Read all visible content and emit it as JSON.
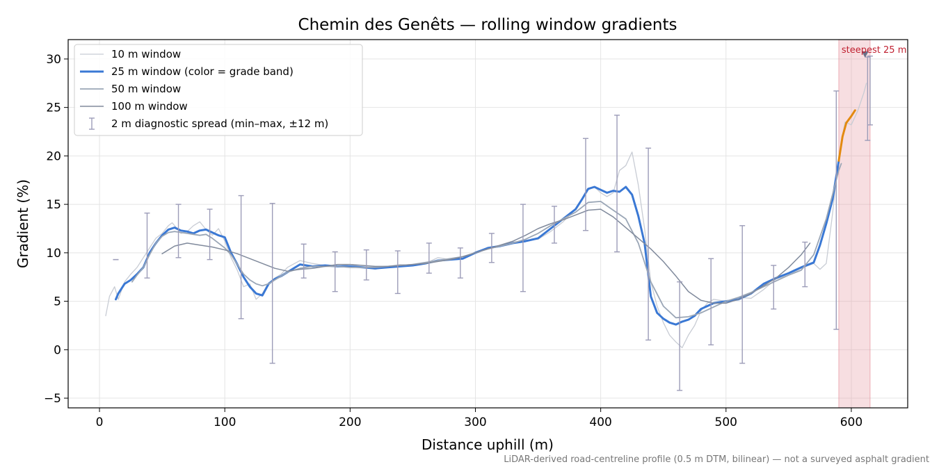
{
  "chart_data": {
    "type": "line",
    "title": "Chemin des Genêts — rolling window gradients",
    "xlabel": "Distance uphill (m)",
    "ylabel": "Gradient (%)",
    "xlim": [
      -25,
      645
    ],
    "ylim": [
      -6,
      32
    ],
    "x_ticks": [
      0,
      100,
      200,
      300,
      400,
      500,
      600
    ],
    "y_ticks": [
      -5,
      0,
      5,
      10,
      15,
      20,
      25,
      30
    ],
    "y_tick_labels": [
      "−5",
      "0",
      "5",
      "10",
      "15",
      "20",
      "25",
      "30"
    ],
    "grid": true,
    "legend_position": "top-left",
    "footnote": "LiDAR-derived road-centreline profile (0.5 m DTM, bilinear) — not a surveyed asphalt gradient",
    "highlight": {
      "x_range": [
        590,
        615
      ],
      "label": "steepest 25 m",
      "marker": [
        611,
        30.5
      ],
      "color": "#e8a0a8"
    },
    "series": [
      {
        "name": "10 m window",
        "color": "#c8ccd4",
        "width": 1.3,
        "x": [
          5,
          8,
          12,
          15,
          20,
          25,
          30,
          35,
          40,
          45,
          50,
          55,
          58,
          62,
          65,
          70,
          75,
          80,
          85,
          90,
          95,
          100,
          105,
          110,
          115,
          120,
          125,
          130,
          135,
          140,
          145,
          150,
          160,
          170,
          180,
          190,
          200,
          210,
          220,
          230,
          240,
          250,
          260,
          270,
          280,
          290,
          300,
          310,
          320,
          330,
          340,
          350,
          360,
          370,
          380,
          385,
          390,
          395,
          400,
          405,
          410,
          415,
          420,
          425,
          430,
          435,
          440,
          445,
          450,
          455,
          460,
          465,
          470,
          475,
          480,
          485,
          490,
          500,
          510,
          520,
          530,
          540,
          550,
          560,
          570,
          575,
          580,
          585,
          590,
          595,
          600,
          605,
          610,
          612
        ],
        "y": [
          3.5,
          5.5,
          6.5,
          5.2,
          7.0,
          7.8,
          8.5,
          9.5,
          10.5,
          11.5,
          12.0,
          12.8,
          13.1,
          12.5,
          12.0,
          12.2,
          12.8,
          13.2,
          12.4,
          11.8,
          12.5,
          11.2,
          9.5,
          8.2,
          6.5,
          6.8,
          5.2,
          5.8,
          6.9,
          7.4,
          7.8,
          8.5,
          9.2,
          8.9,
          8.7,
          8.6,
          8.8,
          8.5,
          8.3,
          8.6,
          8.8,
          8.7,
          8.9,
          9.5,
          9.3,
          9.4,
          10.1,
          10.5,
          10.8,
          11.1,
          11.3,
          11.4,
          12.2,
          13.2,
          14.5,
          15.5,
          16.5,
          16.8,
          16.2,
          15.8,
          16.2,
          18.5,
          19.0,
          20.4,
          17.0,
          12.5,
          7.0,
          4.5,
          2.8,
          1.5,
          0.8,
          0.2,
          1.5,
          2.5,
          4.0,
          4.8,
          5.2,
          5.0,
          5.4,
          5.3,
          6.2,
          7.3,
          7.7,
          8.4,
          8.9,
          8.3,
          8.9,
          14.0,
          20.0,
          23.5,
          23.2,
          24.6,
          26.5,
          27.5
        ]
      },
      {
        "name": "25 m window (color = grade band)",
        "color": "#3a78d4",
        "width": 3,
        "x": [
          13,
          15,
          20,
          25,
          30,
          35,
          40,
          45,
          50,
          55,
          60,
          65,
          70,
          75,
          80,
          85,
          90,
          95,
          100,
          105,
          110,
          115,
          120,
          125,
          130,
          135,
          140,
          145,
          150,
          160,
          170,
          180,
          190,
          200,
          210,
          220,
          230,
          240,
          250,
          260,
          270,
          280,
          290,
          300,
          310,
          320,
          330,
          340,
          350,
          360,
          370,
          380,
          385,
          390,
          395,
          400,
          405,
          410,
          415,
          420,
          425,
          430,
          435,
          440,
          445,
          450,
          455,
          460,
          465,
          470,
          475,
          480,
          490,
          500,
          510,
          520,
          530,
          540,
          550,
          560,
          570,
          575,
          580,
          585,
          590
        ],
        "y": [
          5.2,
          5.8,
          6.8,
          7.2,
          7.8,
          8.5,
          10.0,
          11.0,
          11.8,
          12.4,
          12.6,
          12.3,
          12.2,
          12.0,
          12.3,
          12.4,
          12.1,
          11.8,
          11.6,
          10.0,
          8.8,
          7.5,
          6.5,
          5.8,
          5.6,
          6.8,
          7.3,
          7.6,
          8.0,
          8.8,
          8.6,
          8.7,
          8.6,
          8.6,
          8.5,
          8.4,
          8.5,
          8.6,
          8.7,
          8.9,
          9.2,
          9.3,
          9.4,
          10.0,
          10.5,
          10.7,
          11.0,
          11.2,
          11.5,
          12.5,
          13.5,
          14.5,
          15.5,
          16.6,
          16.8,
          16.5,
          16.2,
          16.4,
          16.3,
          16.8,
          16.0,
          13.8,
          11.0,
          5.5,
          3.8,
          3.2,
          2.8,
          2.6,
          2.9,
          3.1,
          3.5,
          4.2,
          4.8,
          5.0,
          5.2,
          5.8,
          6.8,
          7.4,
          7.9,
          8.5,
          9.0,
          10.8,
          13.0,
          15.5,
          19.5
        ]
      },
      {
        "name": "25 m window (orange segment)",
        "legend": false,
        "color": "#e38a10",
        "width": 3,
        "x": [
          590,
          593,
          596,
          600,
          603
        ],
        "y": [
          19.5,
          22.0,
          23.4,
          24.1,
          24.7
        ]
      },
      {
        "name": "50 m window",
        "color": "#9aa6b6",
        "width": 1.8,
        "x": [
          26,
          30,
          35,
          40,
          45,
          50,
          55,
          60,
          65,
          70,
          75,
          80,
          85,
          90,
          95,
          100,
          105,
          110,
          115,
          120,
          125,
          130,
          135,
          140,
          145,
          150,
          160,
          170,
          180,
          190,
          200,
          210,
          220,
          230,
          240,
          250,
          260,
          270,
          280,
          290,
          300,
          310,
          320,
          330,
          340,
          350,
          360,
          370,
          380,
          390,
          400,
          410,
          420,
          430,
          440,
          450,
          460,
          470,
          480,
          490,
          500,
          510,
          520,
          530,
          540,
          550,
          560,
          570,
          580,
          590,
          592
        ],
        "y": [
          7.0,
          7.7,
          8.5,
          9.8,
          11.0,
          11.7,
          12.1,
          12.2,
          12.1,
          12.0,
          11.9,
          11.8,
          11.9,
          11.5,
          11.0,
          10.5,
          9.8,
          8.8,
          7.8,
          7.2,
          6.8,
          6.6,
          6.8,
          7.2,
          7.6,
          8.0,
          8.4,
          8.6,
          8.6,
          8.6,
          8.5,
          8.5,
          8.5,
          8.6,
          8.7,
          8.8,
          9.0,
          9.2,
          9.4,
          9.6,
          10.0,
          10.4,
          10.7,
          11.0,
          11.4,
          12.0,
          12.8,
          13.5,
          14.2,
          15.2,
          15.3,
          14.4,
          13.5,
          11.0,
          7.0,
          4.5,
          3.3,
          3.4,
          3.8,
          4.4,
          5.0,
          5.4,
          5.9,
          6.5,
          7.1,
          7.7,
          8.2,
          9.8,
          13.5,
          18.5,
          19.2
        ]
      },
      {
        "name": "100 m window",
        "color": "#808a9c",
        "width": 1.5,
        "x": [
          50,
          60,
          70,
          80,
          90,
          100,
          110,
          120,
          130,
          140,
          150,
          160,
          170,
          180,
          190,
          200,
          210,
          220,
          230,
          240,
          250,
          260,
          270,
          280,
          290,
          300,
          310,
          320,
          330,
          340,
          350,
          360,
          370,
          380,
          390,
          400,
          410,
          420,
          430,
          440,
          450,
          460,
          470,
          480,
          490,
          500,
          510,
          520,
          530,
          540,
          550,
          560,
          567
        ],
        "y": [
          9.9,
          10.7,
          11.0,
          10.8,
          10.6,
          10.3,
          9.9,
          9.4,
          8.9,
          8.4,
          8.1,
          8.3,
          8.4,
          8.6,
          8.8,
          8.8,
          8.7,
          8.6,
          8.6,
          8.7,
          8.8,
          8.9,
          9.1,
          9.3,
          9.6,
          10.0,
          10.4,
          10.8,
          11.2,
          11.8,
          12.5,
          13.0,
          13.4,
          13.9,
          14.4,
          14.5,
          13.7,
          12.6,
          11.5,
          10.4,
          9.1,
          7.6,
          6.0,
          5.1,
          4.8,
          4.8,
          5.2,
          5.8,
          6.6,
          7.4,
          8.5,
          9.8,
          11.0
        ]
      }
    ],
    "error_bars": {
      "name": "2 m diagnostic spread (min–max, ±12 m)",
      "color": "#9c9cb8",
      "points": [
        {
          "x": 13,
          "low": 9.3,
          "high": 9.3
        },
        {
          "x": 38,
          "low": 7.4,
          "high": 14.1
        },
        {
          "x": 63,
          "low": 9.5,
          "high": 15.0
        },
        {
          "x": 88,
          "low": 9.3,
          "high": 14.5
        },
        {
          "x": 113,
          "low": 3.2,
          "high": 15.9
        },
        {
          "x": 138,
          "low": -1.4,
          "high": 15.1
        },
        {
          "x": 163,
          "low": 7.4,
          "high": 10.9
        },
        {
          "x": 188,
          "low": 6.0,
          "high": 10.1
        },
        {
          "x": 213,
          "low": 7.2,
          "high": 10.3
        },
        {
          "x": 238,
          "low": 5.8,
          "high": 10.2
        },
        {
          "x": 263,
          "low": 7.9,
          "high": 11.0
        },
        {
          "x": 288,
          "low": 7.4,
          "high": 10.5
        },
        {
          "x": 313,
          "low": 9.0,
          "high": 12.0
        },
        {
          "x": 338,
          "low": 6.0,
          "high": 15.0
        },
        {
          "x": 363,
          "low": 11.0,
          "high": 14.8
        },
        {
          "x": 388,
          "low": 12.3,
          "high": 21.8
        },
        {
          "x": 413,
          "low": 10.1,
          "high": 24.2
        },
        {
          "x": 438,
          "low": 1.0,
          "high": 20.8
        },
        {
          "x": 463,
          "low": -4.2,
          "high": 7.0
        },
        {
          "x": 488,
          "low": 0.5,
          "high": 9.4
        },
        {
          "x": 513,
          "low": -1.4,
          "high": 12.8
        },
        {
          "x": 538,
          "low": 4.2,
          "high": 8.7
        },
        {
          "x": 563,
          "low": 6.5,
          "high": 11.1
        },
        {
          "x": 588,
          "low": 2.1,
          "high": 26.7
        },
        {
          "x": 613,
          "low": 21.6,
          "high": 30.2
        },
        {
          "x": 615,
          "low": 23.2,
          "high": 30.3
        }
      ]
    }
  }
}
